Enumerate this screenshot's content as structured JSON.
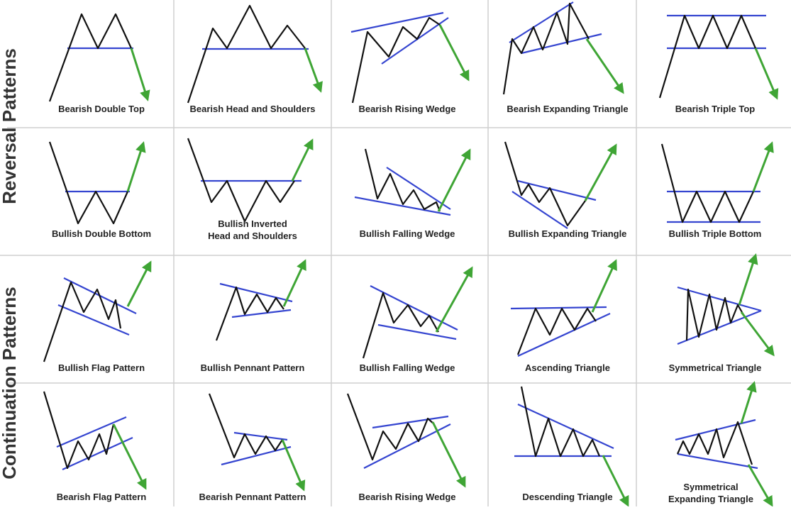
{
  "sections": [
    {
      "label": "Reversal Patterns",
      "rows": [
        [
          "Bearish Double Top",
          "Bearish Head and Shoulders",
          "Bearish Rising Wedge",
          "Bearish Expanding Triangle",
          "Bearish Triple Top"
        ],
        [
          "Bullish Double Bottom",
          [
            "Bullish Inverted",
            "Head and Shoulders"
          ],
          "Bullish Falling Wedge",
          "Bullish Expanding Triangle",
          "Bullish Triple Bottom"
        ]
      ]
    },
    {
      "label": "Continuation Patterns",
      "rows": [
        [
          "Bullish Flag Pattern",
          "Bullish Pennant Pattern",
          "Bullish Falling Wedge",
          "Ascending Triangle",
          "Symmetrical Triangle"
        ],
        [
          "Bearish Flag Pattern",
          "Bearish Pennant Pattern",
          "Bearish Rising Wedge",
          "Descending Triangle",
          [
            "Symmetrical",
            "Expanding Triangle"
          ]
        ]
      ]
    }
  ]
}
